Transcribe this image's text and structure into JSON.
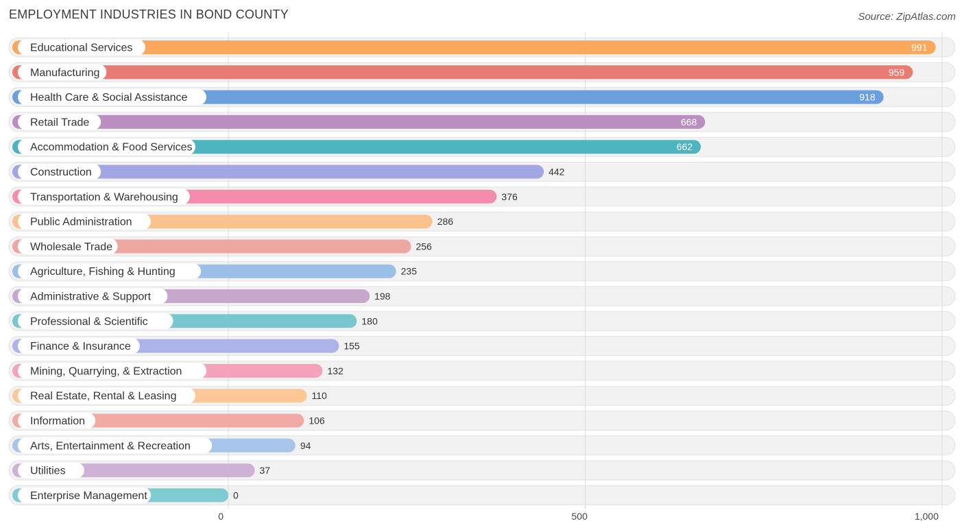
{
  "header": {
    "title": "EMPLOYMENT INDUSTRIES IN BOND COUNTY",
    "source": "Source: ZipAtlas.com"
  },
  "chart_data": {
    "type": "bar",
    "orientation": "horizontal",
    "title": "EMPLOYMENT INDUSTRIES IN BOND COUNTY",
    "xlim": [
      0,
      1000
    ],
    "ticks": [
      0,
      500,
      1000
    ],
    "tick_labels": [
      "0",
      "500",
      "1,000"
    ],
    "categories": [
      "Educational Services",
      "Manufacturing",
      "Health Care & Social Assistance",
      "Retail Trade",
      "Accommodation & Food Services",
      "Construction",
      "Transportation & Warehousing",
      "Public Administration",
      "Wholesale Trade",
      "Agriculture, Fishing & Hunting",
      "Administrative & Support",
      "Professional & Scientific",
      "Finance & Insurance",
      "Mining, Quarrying, & Extraction",
      "Real Estate, Rental & Leasing",
      "Information",
      "Arts, Entertainment & Recreation",
      "Utilities",
      "Enterprise Management"
    ],
    "values": [
      991,
      959,
      918,
      668,
      662,
      442,
      376,
      286,
      256,
      235,
      198,
      180,
      155,
      132,
      110,
      106,
      94,
      37,
      0
    ],
    "value_labels": [
      "991",
      "959",
      "918",
      "668",
      "662",
      "442",
      "376",
      "286",
      "256",
      "235",
      "198",
      "180",
      "155",
      "132",
      "110",
      "106",
      "94",
      "37",
      "0"
    ],
    "colors": [
      "#f9a85e",
      "#e87c74",
      "#6a9fdb",
      "#b98fc0",
      "#4cb5c0",
      "#a2a6e3",
      "#f58cae",
      "#fbc28e",
      "#eda6a1",
      "#9cbfe8",
      "#c8a7cf",
      "#78c7cf",
      "#abb3e8",
      "#f5a3bd",
      "#fbc896",
      "#f1aaa6",
      "#a7c4ea",
      "#cdb2d6",
      "#7ecbd2"
    ]
  }
}
